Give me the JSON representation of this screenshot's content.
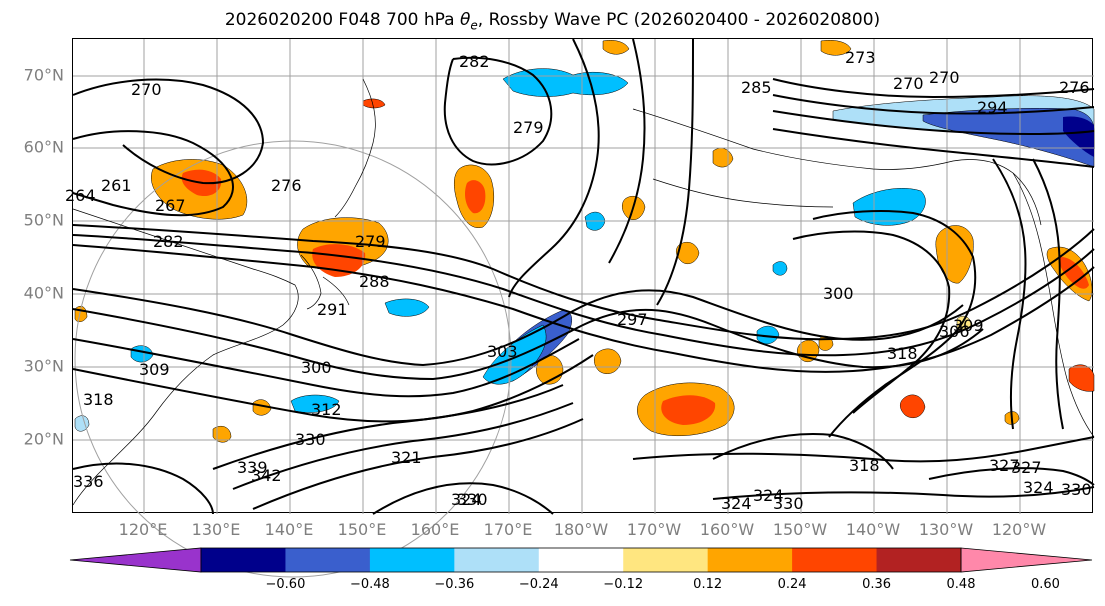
{
  "title": {
    "prefix": "2026020200 F048 700 hPa ",
    "theta": "θ",
    "subscript": "e",
    "suffix": ", Rossby Wave PC (2026020400 - 2026020800)"
  },
  "axes": {
    "lat_labels": [
      "70°N",
      "60°N",
      "50°N",
      "40°N",
      "30°N",
      "20°N"
    ],
    "lon_labels": [
      "120°E",
      "130°E",
      "140°E",
      "150°E",
      "160°E",
      "170°E",
      "180°W",
      "170°W",
      "160°W",
      "150°W",
      "140°W",
      "130°W",
      "120°W"
    ],
    "lat_range": [
      10,
      75
    ],
    "lon_range_east": [
      110,
      250
    ],
    "tick_color": "#7f7f7f",
    "grid": true
  },
  "colorbar": {
    "ticks": [
      "−0.60",
      "−0.48",
      "−0.36",
      "−0.24",
      "−0.12",
      "0.12",
      "0.24",
      "0.36",
      "0.48",
      "0.60"
    ],
    "colors": [
      "#9933cc",
      "#00008b",
      "#3a5fcd",
      "#00bfff",
      "#aee0f8",
      "#ffffff",
      "#ffe680",
      "#ffa500",
      "#ff4500",
      "#b22222",
      "#ff88aa"
    ],
    "extend": "both"
  },
  "contour_labels": [
    "270",
    "261",
    "264",
    "267",
    "282",
    "279",
    "288",
    "291",
    "300",
    "309",
    "318",
    "312",
    "330",
    "339",
    "342",
    "321",
    "324",
    "330",
    "336",
    "297",
    "303",
    "276",
    "285",
    "282",
    "279",
    "270",
    "270",
    "276",
    "294",
    "273",
    "300",
    "306",
    "309",
    "318",
    "327",
    "318",
    "324",
    "330",
    "324",
    "324",
    "330",
    "327"
  ],
  "anomaly_colors": {
    "positive_light": "#ffe680",
    "positive_mid": "#ffa500",
    "positive_strong": "#ff4500",
    "negative_light": "#aee0f8",
    "negative_mid": "#00bfff",
    "negative_strong": "#3a5fcd"
  }
}
